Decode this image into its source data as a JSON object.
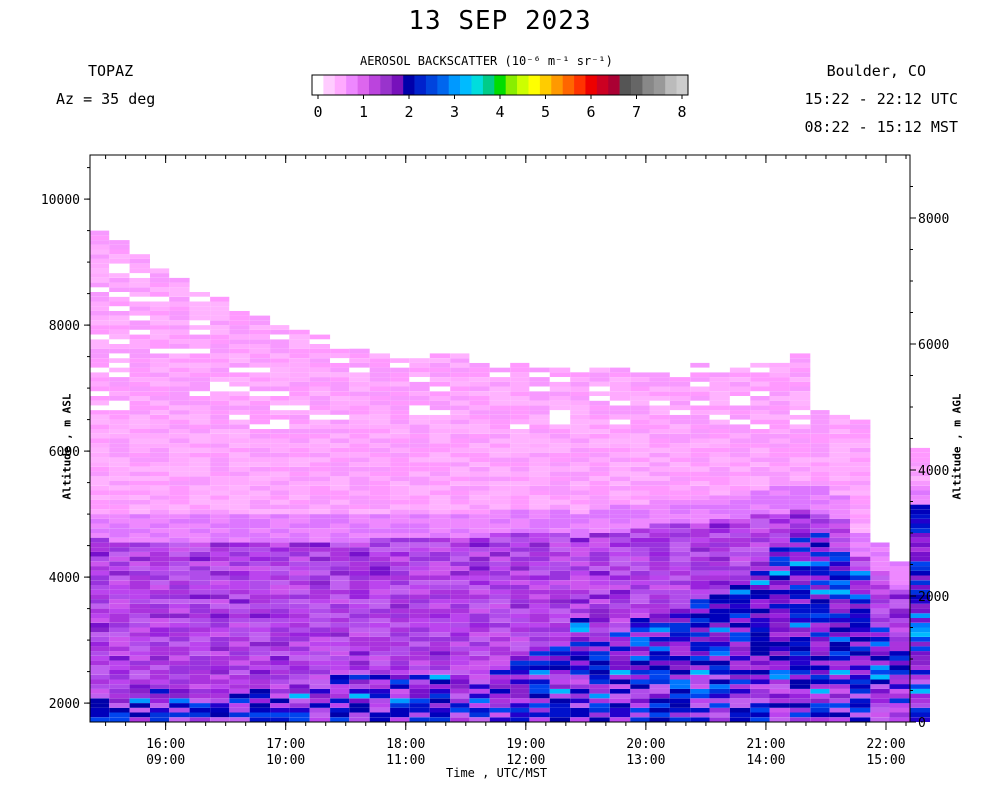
{
  "title": "13 SEP 2023",
  "header": {
    "instrument": "TOPAZ",
    "azimuth": "Az =  35 deg",
    "location": "Boulder, CO",
    "utc_range": "15:22 - 22:12 UTC",
    "mst_range": "08:22 - 15:12 MST"
  },
  "colorbar": {
    "title": "AEROSOL BACKSCATTER",
    "units": "(10⁻⁶ m⁻¹ sr⁻¹)",
    "ticks": [
      "0",
      "1",
      "2",
      "3",
      "4",
      "5",
      "6",
      "7",
      "8"
    ],
    "colors": [
      "#ffffff",
      "#ffccff",
      "#ffaaff",
      "#ee88ff",
      "#dd66ee",
      "#bb44dd",
      "#9933cc",
      "#7711bb",
      "#0000aa",
      "#0022cc",
      "#0044dd",
      "#0066ee",
      "#0099ff",
      "#00bbff",
      "#00dddd",
      "#00cc88",
      "#00dd00",
      "#88ee00",
      "#ccff00",
      "#ffff00",
      "#ffcc00",
      "#ff9900",
      "#ff6600",
      "#ff3300",
      "#ee0000",
      "#cc0022",
      "#aa0033",
      "#555555",
      "#666666",
      "#888888",
      "#999999",
      "#bbbbbb",
      "#cccccc"
    ]
  },
  "chart_data": {
    "type": "heatmap",
    "xlabel": "Time , UTC/MST",
    "ylabel_left": "Altitude , m ASL",
    "ylabel_right": "Altitude , m AGL",
    "x_range_utc_hours": [
      15.37,
      22.2
    ],
    "ylim_asl": [
      1700,
      10700
    ],
    "ylim_agl": [
      0,
      9000
    ],
    "x_ticks": [
      {
        "utc": "16:00",
        "mst": "09:00",
        "h": 16
      },
      {
        "utc": "17:00",
        "mst": "10:00",
        "h": 17
      },
      {
        "utc": "18:00",
        "mst": "11:00",
        "h": 18
      },
      {
        "utc": "19:00",
        "mst": "12:00",
        "h": 19
      },
      {
        "utc": "20:00",
        "mst": "13:00",
        "h": 20
      },
      {
        "utc": "21:00",
        "mst": "14:00",
        "h": 21
      },
      {
        "utc": "22:00",
        "mst": "15:00",
        "h": 22
      }
    ],
    "y_ticks_left": [
      2000,
      4000,
      6000,
      8000,
      10000
    ],
    "y_ticks_right": [
      0,
      2000,
      4000,
      6000,
      8000
    ],
    "profiles": [
      {
        "t": 15.37,
        "top": 9450,
        "pbl": 5000,
        "blue": 2250
      },
      {
        "t": 15.53,
        "top": 9300,
        "pbl": 4950,
        "blue": 2250
      },
      {
        "t": 15.7,
        "top": 9100,
        "pbl": 4950,
        "blue": 2200
      },
      {
        "t": 15.87,
        "top": 8900,
        "pbl": 4950,
        "blue": 2200
      },
      {
        "t": 16.03,
        "top": 8700,
        "pbl": 4950,
        "blue": 2150
      },
      {
        "t": 16.2,
        "top": 8550,
        "pbl": 4950,
        "blue": 2150
      },
      {
        "t": 16.37,
        "top": 8450,
        "pbl": 4950,
        "blue": 2150
      },
      {
        "t": 16.53,
        "top": 8300,
        "pbl": 4950,
        "blue": 2200
      },
      {
        "t": 16.7,
        "top": 8150,
        "pbl": 4950,
        "blue": 2200
      },
      {
        "t": 16.87,
        "top": 8000,
        "pbl": 4950,
        "blue": 2200
      },
      {
        "t": 17.03,
        "top": 7900,
        "pbl": 4950,
        "blue": 2300
      },
      {
        "t": 17.2,
        "top": 7800,
        "pbl": 4950,
        "blue": 2350
      },
      {
        "t": 17.37,
        "top": 7700,
        "pbl": 4950,
        "blue": 2400
      },
      {
        "t": 17.53,
        "top": 7600,
        "pbl": 4950,
        "blue": 2400
      },
      {
        "t": 17.7,
        "top": 7550,
        "pbl": 5000,
        "blue": 2400
      },
      {
        "t": 17.87,
        "top": 7500,
        "pbl": 5000,
        "blue": 2400
      },
      {
        "t": 18.03,
        "top": 7450,
        "pbl": 5000,
        "blue": 2400
      },
      {
        "t": 18.2,
        "top": 7500,
        "pbl": 5000,
        "blue": 2400
      },
      {
        "t": 18.37,
        "top": 7500,
        "pbl": 5000,
        "blue": 2400
      },
      {
        "t": 18.53,
        "top": 7450,
        "pbl": 5000,
        "blue": 2450
      },
      {
        "t": 18.7,
        "top": 7400,
        "pbl": 5050,
        "blue": 2500
      },
      {
        "t": 18.87,
        "top": 7350,
        "pbl": 5050,
        "blue": 2800
      },
      {
        "t": 19.03,
        "top": 7300,
        "pbl": 5050,
        "blue": 2850
      },
      {
        "t": 19.2,
        "top": 7300,
        "pbl": 5050,
        "blue": 2850
      },
      {
        "t": 19.37,
        "top": 7250,
        "pbl": 5000,
        "blue": 3300
      },
      {
        "t": 19.53,
        "top": 7300,
        "pbl": 5050,
        "blue": 2950
      },
      {
        "t": 19.7,
        "top": 7300,
        "pbl": 5100,
        "blue": 3100
      },
      {
        "t": 19.87,
        "top": 7300,
        "pbl": 5150,
        "blue": 3300
      },
      {
        "t": 20.03,
        "top": 7300,
        "pbl": 5200,
        "blue": 3400
      },
      {
        "t": 20.2,
        "top": 7350,
        "pbl": 5200,
        "blue": 3500
      },
      {
        "t": 20.37,
        "top": 7350,
        "pbl": 5200,
        "blue": 3600
      },
      {
        "t": 20.53,
        "top": 7300,
        "pbl": 5300,
        "blue": 3700
      },
      {
        "t": 20.7,
        "top": 7300,
        "pbl": 5300,
        "blue": 3900
      },
      {
        "t": 20.87,
        "top": 7350,
        "pbl": 5350,
        "blue": 4200
      },
      {
        "t": 21.03,
        "top": 7400,
        "pbl": 5400,
        "blue": 4500
      },
      {
        "t": 21.2,
        "top": 7500,
        "pbl": 5450,
        "blue": 4700
      },
      {
        "t": 21.37,
        "top": 6600,
        "pbl": 5400,
        "blue": 4700
      },
      {
        "t": 21.53,
        "top": 6550,
        "pbl": 5300,
        "blue": 4400
      },
      {
        "t": 21.7,
        "top": 6450,
        "pbl": 4700,
        "blue": 4100
      },
      {
        "t": 21.87,
        "top": 4500,
        "pbl": 4500,
        "blue": 3200
      },
      {
        "t": 22.03,
        "top": 4250,
        "pbl": 4250,
        "blue": 3000
      },
      {
        "t": 22.03,
        "top": 4150,
        "pbl": 4150,
        "blue": 2950
      },
      {
        "t": 22.2,
        "top": 6000,
        "pbl": 5400,
        "blue": 5100
      }
    ]
  }
}
